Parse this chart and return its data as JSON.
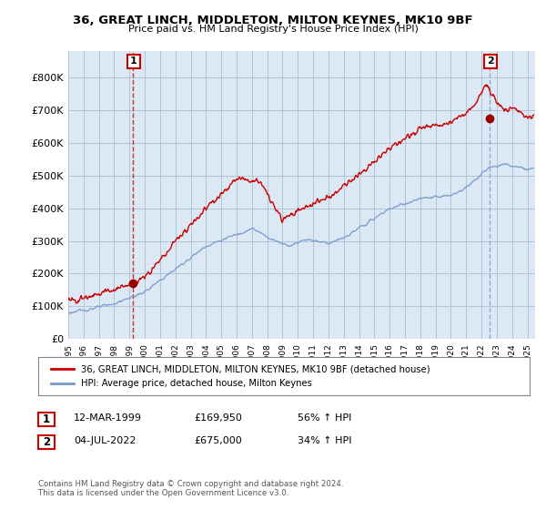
{
  "title": "36, GREAT LINCH, MIDDLETON, MILTON KEYNES, MK10 9BF",
  "subtitle": "Price paid vs. HM Land Registry's House Price Index (HPI)",
  "ylabel_ticks": [
    "£0",
    "£100K",
    "£200K",
    "£300K",
    "£400K",
    "£500K",
    "£600K",
    "£700K",
    "£800K"
  ],
  "ytick_values": [
    0,
    100000,
    200000,
    300000,
    400000,
    500000,
    600000,
    700000,
    800000
  ],
  "ylim": [
    0,
    880000
  ],
  "xlim_start": 1995.0,
  "xlim_end": 2025.5,
  "legend_line1": "36, GREAT LINCH, MIDDLETON, MILTON KEYNES, MK10 9BF (detached house)",
  "legend_line2": "HPI: Average price, detached house, Milton Keynes",
  "annotation1_label": "1",
  "annotation1_date": "12-MAR-1999",
  "annotation1_price": "£169,950",
  "annotation1_hpi": "56% ↑ HPI",
  "annotation1_year": 1999.2,
  "annotation1_value": 169950,
  "annotation2_label": "2",
  "annotation2_date": "04-JUL-2022",
  "annotation2_price": "£675,000",
  "annotation2_hpi": "34% ↑ HPI",
  "annotation2_year": 2022.5,
  "annotation2_value": 675000,
  "footnote": "Contains HM Land Registry data © Crown copyright and database right 2024.\nThis data is licensed under the Open Government Licence v3.0.",
  "line_color_red": "#cc0000",
  "line_color_blue": "#7799cc",
  "marker_color_red": "#990000",
  "plot_bg_color": "#dce9f5",
  "background_color": "#ffffff",
  "grid_color": "#b0c4d8",
  "annotation_box_color": "#cc0000"
}
